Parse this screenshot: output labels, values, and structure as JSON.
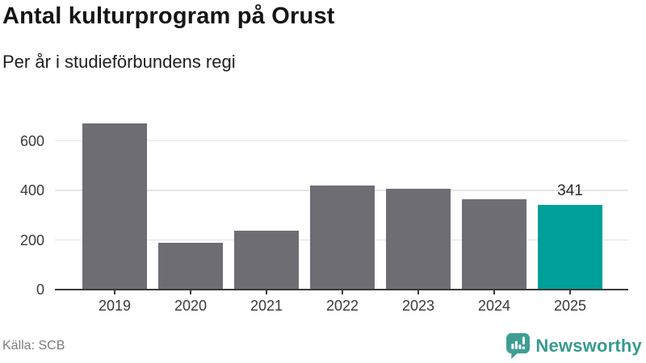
{
  "chart_data": {
    "type": "bar",
    "title": "Antal kulturprogram på Orust",
    "subtitle": "Per år i studieförbundens regi",
    "categories": [
      "2019",
      "2020",
      "2021",
      "2022",
      "2023",
      "2024",
      "2025"
    ],
    "values": [
      670,
      188,
      238,
      421,
      408,
      365,
      341
    ],
    "highlight_index": 6,
    "yticks": [
      0,
      200,
      400,
      600
    ],
    "ylim": [
      0,
      719
    ],
    "grid": true,
    "legend": false,
    "xlabel": "",
    "ylabel": "",
    "annotations": [
      {
        "category": "2025",
        "text": "341"
      }
    ]
  },
  "footer": {
    "source": "Källa: SCB",
    "brand": "Newsworthy",
    "brand_icon": "newsworthy-speech-bubble-bar-chart-icon"
  },
  "colors": {
    "bar": "#6e6d74",
    "highlight": "#00a09a",
    "axis": "#3a3a3a",
    "gridline": "#e4e4e4",
    "brand_teal": "#399a90",
    "icon_teal": "#3f9e93",
    "title_text": "#151515",
    "muted_text": "#7c7c7c"
  }
}
